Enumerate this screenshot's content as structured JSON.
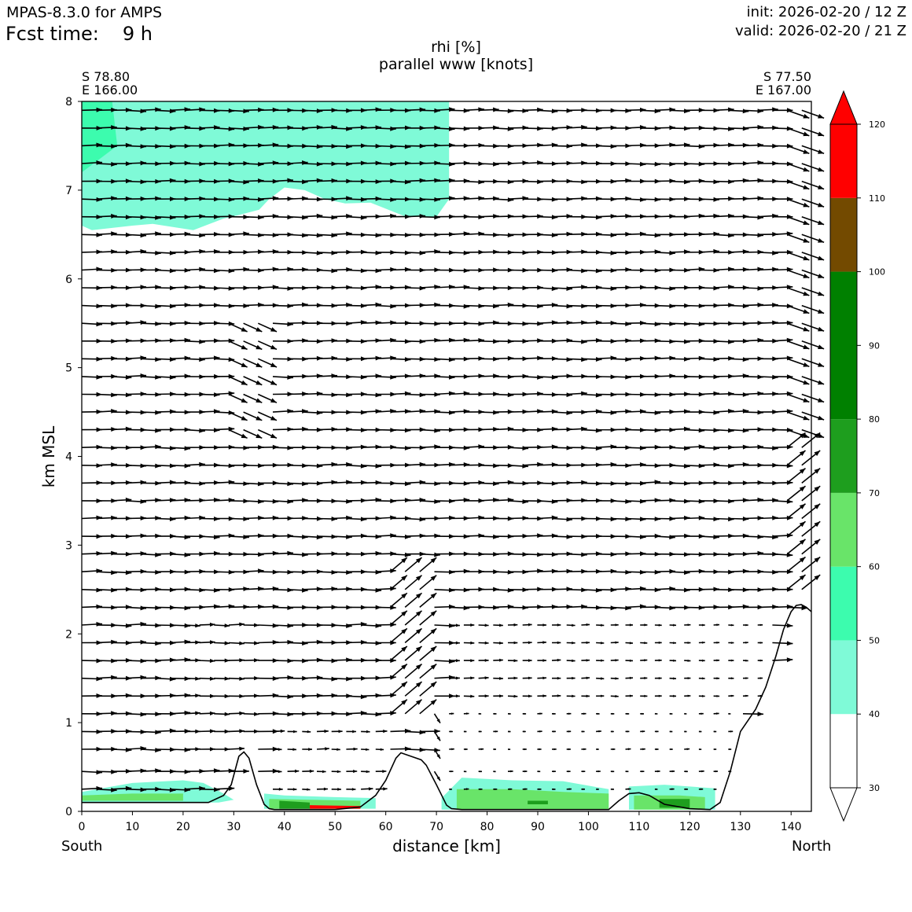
{
  "header": {
    "model": "MPAS-8.3.0 for AMPS",
    "fcst_label": "Fcst time:",
    "fcst_value": "9 h",
    "init": "init: 2026-02-20 / 12 Z",
    "valid": "valid: 2026-02-20 / 21 Z"
  },
  "chart_data": {
    "type": "filled-contour-cross-section",
    "title": "rhi [%]",
    "subtitle": "parallel www [knots]",
    "xlabel": "distance [km]",
    "ylabel": "km MSL",
    "xlim": [
      0,
      144
    ],
    "ylim": [
      0,
      8
    ],
    "xticks": [
      0,
      10,
      20,
      30,
      40,
      50,
      60,
      70,
      80,
      90,
      100,
      110,
      120,
      130,
      140
    ],
    "yticks": [
      0,
      1,
      2,
      3,
      4,
      5,
      6,
      7,
      8
    ],
    "start_point": {
      "lat": "S 78.80",
      "lon": "E 166.00"
    },
    "end_point": {
      "lat": "S 77.50",
      "lon": "E 167.00"
    },
    "left_end_label": "South",
    "right_end_label": "North",
    "colorbar": {
      "levels": [
        30,
        40,
        50,
        60,
        70,
        80,
        90,
        100,
        110,
        120
      ],
      "tick_labels": [
        "30",
        "40",
        "50",
        "60",
        "70",
        "80",
        "90",
        "100",
        "110",
        "120"
      ],
      "colors": [
        "#ffffff",
        "#7ffad7",
        "#3cfcae",
        "#69e469",
        "#1e9e1e",
        "#008000",
        "#008000",
        "#734a00",
        "#ff0000"
      ],
      "extend_min_color": "#ffffff",
      "extend_max_color": "#ff0000"
    },
    "terrain": {
      "x_km": [
        0,
        5,
        10,
        15,
        20,
        25,
        28,
        29.5,
        31,
        32,
        33,
        34.5,
        36,
        37,
        38,
        40,
        45,
        50,
        55,
        58,
        60,
        62,
        63,
        65,
        67,
        68,
        70,
        72,
        73,
        75,
        80,
        90,
        100,
        104,
        106,
        108,
        110,
        112,
        115,
        120,
        124,
        126,
        128,
        130,
        133,
        135,
        137,
        138.5,
        140,
        141,
        142,
        143,
        144
      ],
      "height_km": [
        0.1,
        0.1,
        0.1,
        0.1,
        0.1,
        0.1,
        0.18,
        0.3,
        0.62,
        0.67,
        0.6,
        0.3,
        0.08,
        0.03,
        0.02,
        0.02,
        0.02,
        0.02,
        0.05,
        0.18,
        0.35,
        0.6,
        0.66,
        0.62,
        0.58,
        0.52,
        0.3,
        0.07,
        0.03,
        0.02,
        0.02,
        0.02,
        0.02,
        0.02,
        0.12,
        0.2,
        0.21,
        0.18,
        0.08,
        0.03,
        0.02,
        0.1,
        0.45,
        0.9,
        1.15,
        1.4,
        1.75,
        2.05,
        2.25,
        2.32,
        2.33,
        2.3,
        2.25
      ]
    },
    "rhi_regions": [
      {
        "level": "40-50",
        "x_km": [
          0,
          2,
          10,
          14,
          22,
          28,
          31,
          35,
          37,
          40,
          44,
          48,
          52,
          57,
          64,
          70,
          72.5,
          72.5,
          0
        ],
        "height_km": [
          6.6,
          6.55,
          6.6,
          6.62,
          6.55,
          6.68,
          6.72,
          6.78,
          6.9,
          7.03,
          7.0,
          6.9,
          6.85,
          6.86,
          6.7,
          6.7,
          6.9,
          8,
          8
        ]
      },
      {
        "level": "50-60",
        "x_km": [
          0,
          7,
          6,
          2,
          0
        ],
        "height_km": [
          7.2,
          7.5,
          8,
          8,
          8
        ]
      },
      {
        "level": "40-50",
        "x_km": [
          0,
          10,
          20,
          24,
          28,
          30,
          27,
          20,
          10,
          0
        ],
        "height_km": [
          0.22,
          0.32,
          0.35,
          0.32,
          0.2,
          0.13,
          0.1,
          0.1,
          0.1,
          0.1
        ]
      },
      {
        "level": "60-70",
        "x_km": [
          0,
          10,
          20,
          20,
          10,
          0
        ],
        "height_km": [
          0.18,
          0.2,
          0.2,
          0.12,
          0.12,
          0.12
        ]
      },
      {
        "level": "40-50",
        "x_km": [
          36,
          40,
          50,
          58,
          58,
          36
        ],
        "height_km": [
          0.2,
          0.18,
          0.16,
          0.15,
          0.03,
          0.03
        ]
      },
      {
        "level": "60-70",
        "x_km": [
          37,
          45,
          55,
          55,
          37
        ],
        "height_km": [
          0.14,
          0.13,
          0.12,
          0.03,
          0.03
        ]
      },
      {
        "level": "70-80",
        "x_km": [
          39,
          45,
          45,
          39
        ],
        "height_km": [
          0.12,
          0.1,
          0.03,
          0.03
        ]
      },
      {
        "level": "110-120",
        "x_km": [
          45,
          55,
          55,
          45
        ],
        "height_km": [
          0.07,
          0.06,
          0.03,
          0.03
        ]
      },
      {
        "level": "40-50",
        "x_km": [
          71,
          75,
          85,
          95,
          104,
          104,
          71
        ],
        "height_km": [
          0.15,
          0.38,
          0.35,
          0.34,
          0.25,
          0.02,
          0.02
        ]
      },
      {
        "level": "60-70",
        "x_km": [
          74,
          85,
          95,
          104,
          104,
          74
        ],
        "height_km": [
          0.25,
          0.25,
          0.22,
          0.2,
          0.02,
          0.02
        ]
      },
      {
        "level": "70-80",
        "x_km": [
          88,
          92,
          92,
          88
        ],
        "height_km": [
          0.12,
          0.12,
          0.08,
          0.08
        ]
      },
      {
        "level": "40-50",
        "x_km": [
          108,
          115,
          125,
          125,
          108
        ],
        "height_km": [
          0.28,
          0.3,
          0.26,
          0.02,
          0.02
        ]
      },
      {
        "level": "60-70",
        "x_km": [
          109,
          118,
          123,
          123,
          109
        ],
        "height_km": [
          0.18,
          0.18,
          0.16,
          0.02,
          0.02
        ]
      },
      {
        "level": "70-80",
        "x_km": [
          114,
          120,
          120,
          114
        ],
        "height_km": [
          0.14,
          0.14,
          0.04,
          0.04
        ]
      }
    ],
    "wind": {
      "units": "knots",
      "levels_km": [
        0.05,
        0.25,
        0.45,
        0.7,
        0.9,
        1.1,
        1.3,
        1.5,
        1.7,
        1.9,
        2.1,
        2.3,
        2.5,
        2.7,
        2.9,
        3.1,
        3.3,
        3.5,
        3.7,
        3.9,
        4.1,
        4.3,
        4.5,
        4.7,
        4.9,
        5.1,
        5.3,
        5.5,
        5.7,
        5.9,
        6.1,
        6.3,
        6.5,
        6.7,
        6.9,
        7.1,
        7.3,
        7.5,
        7.7,
        7.9
      ],
      "column_spacing_km": 2.9,
      "typical_speed_aloft_knots": 20,
      "note": "speeds nearly calm below 1 km east of 70 km; northerly component strongest near 140 km"
    }
  }
}
